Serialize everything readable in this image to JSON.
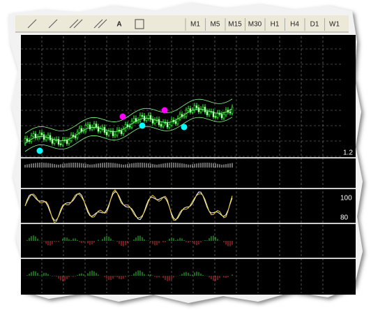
{
  "toolbar": {
    "text_tool": "A",
    "timeframes": [
      "M1",
      "M5",
      "M15",
      "M30",
      "H1",
      "H4",
      "D1",
      "W1"
    ]
  },
  "price_axis": {
    "bottom_label": "1.2"
  },
  "stochastic_axis": {
    "labels": [
      "100",
      "80"
    ]
  }
}
